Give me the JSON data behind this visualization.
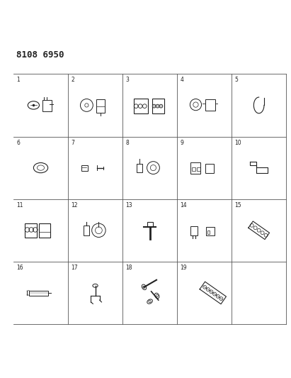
{
  "title": "8108 6950",
  "background_color": "#ffffff",
  "grid_color": "#555555",
  "line_color": "#222222",
  "figsize": [
    4.11,
    5.33
  ],
  "dpi": 100,
  "grid_cols": 5,
  "grid_rows": 4,
  "cell_labels": [
    "1",
    "2",
    "3",
    "4",
    "5",
    "6",
    "7",
    "8",
    "9",
    "10",
    "11",
    "12",
    "13",
    "14",
    "15",
    "16",
    "17",
    "18",
    "19"
  ],
  "label_color": "#222222",
  "label_fontsize": 7
}
